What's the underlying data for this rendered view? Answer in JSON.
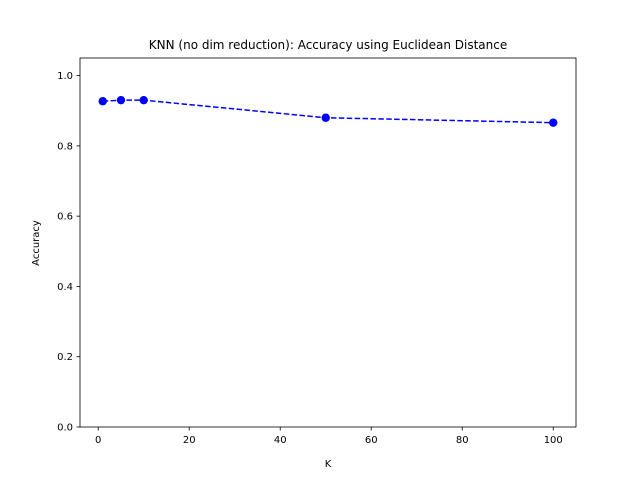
{
  "chart_data": {
    "type": "line",
    "title": "KNN (no dim reduction): Accuracy using Euclidean Distance",
    "xlabel": "K",
    "ylabel": "Accuracy",
    "xlim": [
      -4,
      105
    ],
    "ylim": [
      0,
      1.05
    ],
    "x_ticks": [
      0,
      20,
      40,
      60,
      80,
      100
    ],
    "y_ticks": [
      0.0,
      0.2,
      0.4,
      0.6,
      0.8,
      1.0
    ],
    "grid": false,
    "series": [
      {
        "x": [
          1,
          5,
          10,
          50,
          100
        ],
        "y": [
          0.927,
          0.93,
          0.93,
          0.88,
          0.866
        ],
        "color": "#0000ff",
        "line_style": "dashed",
        "marker": "circle"
      }
    ]
  }
}
